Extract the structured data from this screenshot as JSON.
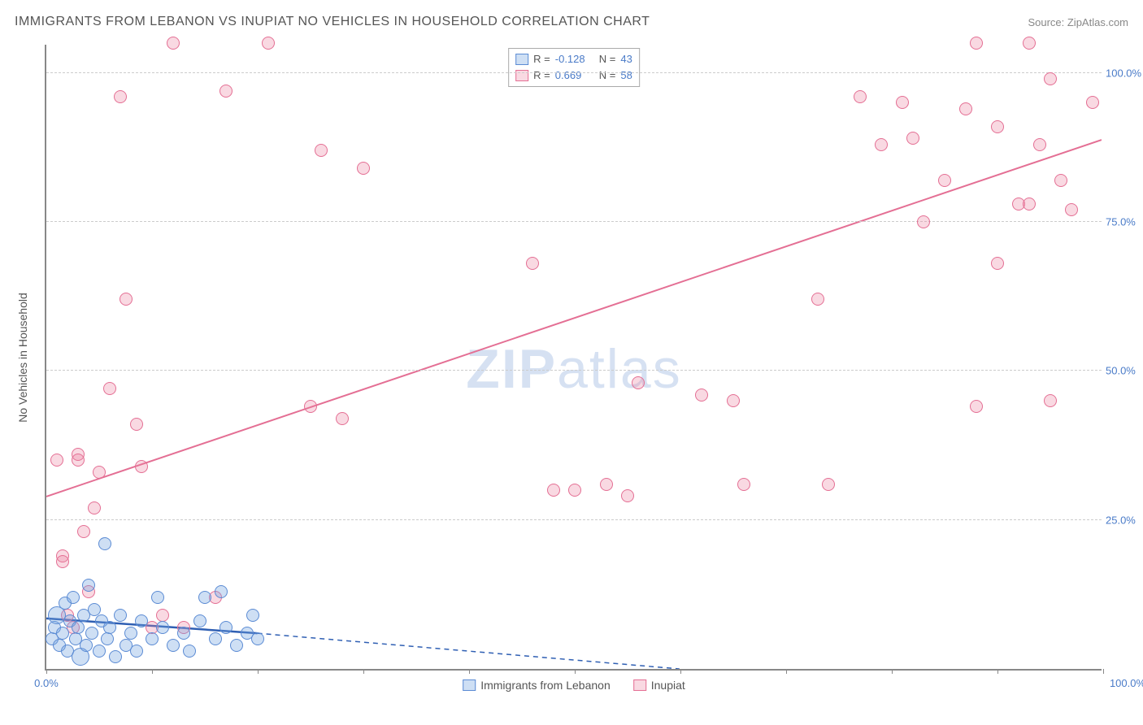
{
  "title": "IMMIGRANTS FROM LEBANON VS INUPIAT NO VEHICLES IN HOUSEHOLD CORRELATION CHART",
  "source_label": "Source: ZipAtlas.com",
  "y_axis_label": "No Vehicles in Household",
  "watermark_part1": "ZIP",
  "watermark_part2": "atlas",
  "colors": {
    "series_a_fill": "rgba(116,163,224,0.35)",
    "series_a_stroke": "#5b8bd4",
    "series_a_line": "#2f5fb3",
    "series_b_fill": "rgba(236,130,160,0.30)",
    "series_b_stroke": "#e46f94",
    "series_b_line": "#e46f94",
    "axis_text": "#4a7bc8",
    "grid": "#cccccc"
  },
  "chart": {
    "type": "scatter",
    "xlim": [
      0,
      100
    ],
    "ylim": [
      0,
      105
    ],
    "x_ticks": [
      0,
      10,
      20,
      30,
      40,
      50,
      60,
      70,
      80,
      90,
      100
    ],
    "x_tick_labels": {
      "0": "0.0%",
      "100": "100.0%"
    },
    "y_grid": [
      25,
      50,
      75,
      100
    ],
    "y_tick_labels": {
      "25": "25.0%",
      "50": "50.0%",
      "75": "75.0%",
      "100": "100.0%"
    },
    "marker_radius": 8,
    "marker_radius_large": 11,
    "line_width": 2
  },
  "legend_top": [
    {
      "swatch": "a",
      "r_label": "R =",
      "r_value": "-0.128",
      "n_label": "N =",
      "n_value": "43"
    },
    {
      "swatch": "b",
      "r_label": "R =",
      "r_value": "0.669",
      "n_label": "N =",
      "n_value": "58"
    }
  ],
  "legend_bottom": [
    {
      "swatch": "a",
      "label": "Immigrants from Lebanon"
    },
    {
      "swatch": "b",
      "label": "Inupiat"
    }
  ],
  "series_a": {
    "name": "Immigrants from Lebanon",
    "trend": {
      "x1": 0,
      "y1": 8.5,
      "x2": 20,
      "y2": 6.0,
      "dash_to_x": 60,
      "dash_to_y": 0
    },
    "points": [
      {
        "x": 0.5,
        "y": 5,
        "r": 8
      },
      {
        "x": 0.8,
        "y": 7,
        "r": 8
      },
      {
        "x": 1.0,
        "y": 9,
        "r": 11
      },
      {
        "x": 1.2,
        "y": 4,
        "r": 8
      },
      {
        "x": 1.5,
        "y": 6,
        "r": 8
      },
      {
        "x": 1.8,
        "y": 11,
        "r": 8
      },
      {
        "x": 2.0,
        "y": 3,
        "r": 8
      },
      {
        "x": 2.2,
        "y": 8,
        "r": 8
      },
      {
        "x": 2.5,
        "y": 12,
        "r": 8
      },
      {
        "x": 2.8,
        "y": 5,
        "r": 8
      },
      {
        "x": 3.0,
        "y": 7,
        "r": 8
      },
      {
        "x": 3.2,
        "y": 2,
        "r": 11
      },
      {
        "x": 3.5,
        "y": 9,
        "r": 8
      },
      {
        "x": 3.8,
        "y": 4,
        "r": 8
      },
      {
        "x": 4.0,
        "y": 14,
        "r": 8
      },
      {
        "x": 4.3,
        "y": 6,
        "r": 8
      },
      {
        "x": 4.5,
        "y": 10,
        "r": 8
      },
      {
        "x": 5.0,
        "y": 3,
        "r": 8
      },
      {
        "x": 5.2,
        "y": 8,
        "r": 8
      },
      {
        "x": 5.5,
        "y": 21,
        "r": 8
      },
      {
        "x": 5.8,
        "y": 5,
        "r": 8
      },
      {
        "x": 6.0,
        "y": 7,
        "r": 8
      },
      {
        "x": 6.5,
        "y": 2,
        "r": 8
      },
      {
        "x": 7.0,
        "y": 9,
        "r": 8
      },
      {
        "x": 7.5,
        "y": 4,
        "r": 8
      },
      {
        "x": 8.0,
        "y": 6,
        "r": 8
      },
      {
        "x": 8.5,
        "y": 3,
        "r": 8
      },
      {
        "x": 9.0,
        "y": 8,
        "r": 8
      },
      {
        "x": 10.0,
        "y": 5,
        "r": 8
      },
      {
        "x": 10.5,
        "y": 12,
        "r": 8
      },
      {
        "x": 11.0,
        "y": 7,
        "r": 8
      },
      {
        "x": 12.0,
        "y": 4,
        "r": 8
      },
      {
        "x": 13.0,
        "y": 6,
        "r": 8
      },
      {
        "x": 13.5,
        "y": 3,
        "r": 8
      },
      {
        "x": 14.5,
        "y": 8,
        "r": 8
      },
      {
        "x": 15.0,
        "y": 12,
        "r": 8
      },
      {
        "x": 16.0,
        "y": 5,
        "r": 8
      },
      {
        "x": 16.5,
        "y": 13,
        "r": 8
      },
      {
        "x": 17.0,
        "y": 7,
        "r": 8
      },
      {
        "x": 18.0,
        "y": 4,
        "r": 8
      },
      {
        "x": 19.0,
        "y": 6,
        "r": 8
      },
      {
        "x": 19.5,
        "y": 9,
        "r": 8
      },
      {
        "x": 20.0,
        "y": 5,
        "r": 8
      }
    ]
  },
  "series_b": {
    "name": "Inupiat",
    "trend": {
      "x1": 0,
      "y1": 29,
      "x2": 100,
      "y2": 89
    },
    "points": [
      {
        "x": 1,
        "y": 35
      },
      {
        "x": 1.5,
        "y": 19
      },
      {
        "x": 1.5,
        "y": 18
      },
      {
        "x": 2,
        "y": 9
      },
      {
        "x": 2.5,
        "y": 7
      },
      {
        "x": 3,
        "y": 36
      },
      {
        "x": 3,
        "y": 35
      },
      {
        "x": 3.5,
        "y": 23
      },
      {
        "x": 4,
        "y": 13
      },
      {
        "x": 4.5,
        "y": 27
      },
      {
        "x": 5,
        "y": 33
      },
      {
        "x": 6,
        "y": 47
      },
      {
        "x": 7,
        "y": 96
      },
      {
        "x": 7.5,
        "y": 62
      },
      {
        "x": 8.5,
        "y": 41
      },
      {
        "x": 9,
        "y": 34
      },
      {
        "x": 10,
        "y": 7
      },
      {
        "x": 11,
        "y": 9
      },
      {
        "x": 12,
        "y": 105
      },
      {
        "x": 13,
        "y": 7
      },
      {
        "x": 17,
        "y": 97
      },
      {
        "x": 16,
        "y": 12
      },
      {
        "x": 21,
        "y": 105
      },
      {
        "x": 25,
        "y": 44
      },
      {
        "x": 26,
        "y": 87
      },
      {
        "x": 28,
        "y": 42
      },
      {
        "x": 30,
        "y": 84
      },
      {
        "x": 46,
        "y": 68
      },
      {
        "x": 48,
        "y": 30
      },
      {
        "x": 50,
        "y": 30
      },
      {
        "x": 53,
        "y": 31
      },
      {
        "x": 55,
        "y": 29
      },
      {
        "x": 56,
        "y": 48
      },
      {
        "x": 62,
        "y": 46
      },
      {
        "x": 65,
        "y": 45
      },
      {
        "x": 66,
        "y": 31
      },
      {
        "x": 73,
        "y": 62
      },
      {
        "x": 74,
        "y": 31
      },
      {
        "x": 77,
        "y": 96
      },
      {
        "x": 79,
        "y": 88
      },
      {
        "x": 81,
        "y": 95
      },
      {
        "x": 82,
        "y": 89
      },
      {
        "x": 83,
        "y": 75
      },
      {
        "x": 85,
        "y": 82
      },
      {
        "x": 87,
        "y": 94
      },
      {
        "x": 88,
        "y": 105
      },
      {
        "x": 88,
        "y": 44
      },
      {
        "x": 90,
        "y": 68
      },
      {
        "x": 90,
        "y": 91
      },
      {
        "x": 92,
        "y": 78
      },
      {
        "x": 93,
        "y": 78
      },
      {
        "x": 93,
        "y": 105
      },
      {
        "x": 94,
        "y": 88
      },
      {
        "x": 95,
        "y": 99
      },
      {
        "x": 96,
        "y": 82
      },
      {
        "x": 97,
        "y": 77
      },
      {
        "x": 99,
        "y": 95
      },
      {
        "x": 95,
        "y": 45
      }
    ]
  }
}
